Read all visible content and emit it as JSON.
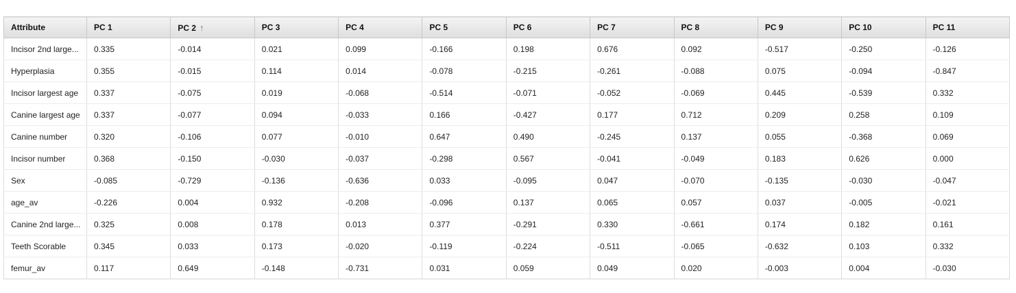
{
  "table": {
    "headers": [
      "Attribute",
      "PC 1",
      "PC 2",
      "PC 3",
      "PC 4",
      "PC 5",
      "PC 6",
      "PC 7",
      "PC 8",
      "PC 9",
      "PC 10",
      "PC 11"
    ],
    "sort_icon": "arrow-up-icon",
    "rows": [
      [
        "Incisor 2nd large...",
        "0.335",
        "-0.014",
        "0.021",
        "0.099",
        "-0.166",
        "0.198",
        "0.676",
        "0.092",
        "-0.517",
        "-0.250",
        "-0.126"
      ],
      [
        "Hyperplasia",
        "0.355",
        "-0.015",
        "0.114",
        "0.014",
        "-0.078",
        "-0.215",
        "-0.261",
        "-0.088",
        "0.075",
        "-0.094",
        "-0.847"
      ],
      [
        "Incisor largest age",
        "0.337",
        "-0.075",
        "0.019",
        "-0.068",
        "-0.514",
        "-0.071",
        "-0.052",
        "-0.069",
        "0.445",
        "-0.539",
        "0.332"
      ],
      [
        "Canine largest age",
        "0.337",
        "-0.077",
        "0.094",
        "-0.033",
        "0.166",
        "-0.427",
        "0.177",
        "0.712",
        "0.209",
        "0.258",
        "0.109"
      ],
      [
        "Canine number",
        "0.320",
        "-0.106",
        "0.077",
        "-0.010",
        "0.647",
        "0.490",
        "-0.245",
        "0.137",
        "0.055",
        "-0.368",
        "0.069"
      ],
      [
        "Incisor number",
        "0.368",
        "-0.150",
        "-0.030",
        "-0.037",
        "-0.298",
        "0.567",
        "-0.041",
        "-0.049",
        "0.183",
        "0.626",
        "0.000"
      ],
      [
        "Sex",
        "-0.085",
        "-0.729",
        "-0.136",
        "-0.636",
        "0.033",
        "-0.095",
        "0.047",
        "-0.070",
        "-0.135",
        "-0.030",
        "-0.047"
      ],
      [
        "age_av",
        "-0.226",
        "0.004",
        "0.932",
        "-0.208",
        "-0.096",
        "0.137",
        "0.065",
        "0.057",
        "0.037",
        "-0.005",
        "-0.021"
      ],
      [
        "Canine 2nd large...",
        "0.325",
        "0.008",
        "0.178",
        "0.013",
        "0.377",
        "-0.291",
        "0.330",
        "-0.661",
        "0.174",
        "0.182",
        "0.161"
      ],
      [
        "Teeth Scorable",
        "0.345",
        "0.033",
        "0.173",
        "-0.020",
        "-0.119",
        "-0.224",
        "-0.511",
        "-0.065",
        "-0.632",
        "0.103",
        "0.332"
      ],
      [
        "femur_av",
        "0.117",
        "0.649",
        "-0.148",
        "-0.731",
        "0.031",
        "0.059",
        "0.049",
        "0.020",
        "-0.003",
        "0.004",
        "-0.030"
      ]
    ]
  }
}
